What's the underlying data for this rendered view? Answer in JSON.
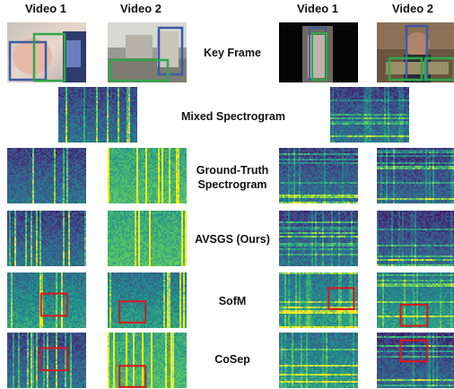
{
  "headers": {
    "left_video1": "Video 1",
    "left_video2": "Video 2",
    "right_video1": "Video 1",
    "right_video2": "Video 2"
  },
  "rows": {
    "key_frame": "Key Frame",
    "mixed": "Mixed Spectrogram",
    "ground_truth_line1": "Ground-Truth",
    "ground_truth_line2": "Spectrogram",
    "avsgs": "AVSGS (Ours)",
    "sofm": "SofM",
    "cosep": "CoSep"
  },
  "colors": {
    "spec_dark": "#3b0f6e",
    "spec_mid": "#2a788e",
    "spec_bright": "#7ad151",
    "spec_yellow": "#fde725",
    "box_blue": "#3b5ba5",
    "box_green": "#2ea84a",
    "box_red": "#e0151b"
  }
}
